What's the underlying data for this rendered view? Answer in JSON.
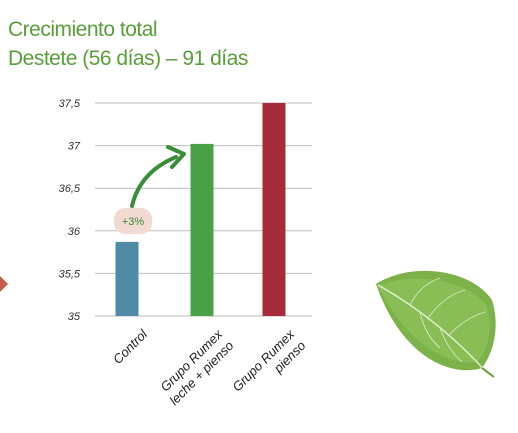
{
  "chart_data": {
    "type": "bar",
    "title": "Crecimiento total",
    "subtitle": "Destete (56 días) – 91 días",
    "categories": [
      {
        "lines": [
          "Control"
        ]
      },
      {
        "lines": [
          "Grupo Rumex",
          "leche + pienso"
        ]
      },
      {
        "lines": [
          "Grupo Rumex",
          "pienso"
        ]
      }
    ],
    "values": [
      35.87,
      37.02,
      37.5
    ],
    "ylim": [
      35,
      37.5
    ],
    "yticks": [
      35,
      35.5,
      36,
      36.5,
      37,
      37.5
    ],
    "ytick_labels": [
      "35",
      "35,5",
      "36",
      "36,5",
      "37",
      "37,5"
    ],
    "grid": true,
    "annotation": "+3%"
  },
  "colors": {
    "title": "#5a9e3a",
    "bars": [
      "#4f8aa6",
      "#4aa047",
      "#a72c3b"
    ],
    "grid": "#bdbdbd",
    "badge": "#f2d9d2",
    "arrow": "#3a8e3a",
    "side_arrow": "#c65b4f",
    "leaf": "#7db24a"
  },
  "decorations": [
    "leaf-icon",
    "side-arrow-icon"
  ]
}
